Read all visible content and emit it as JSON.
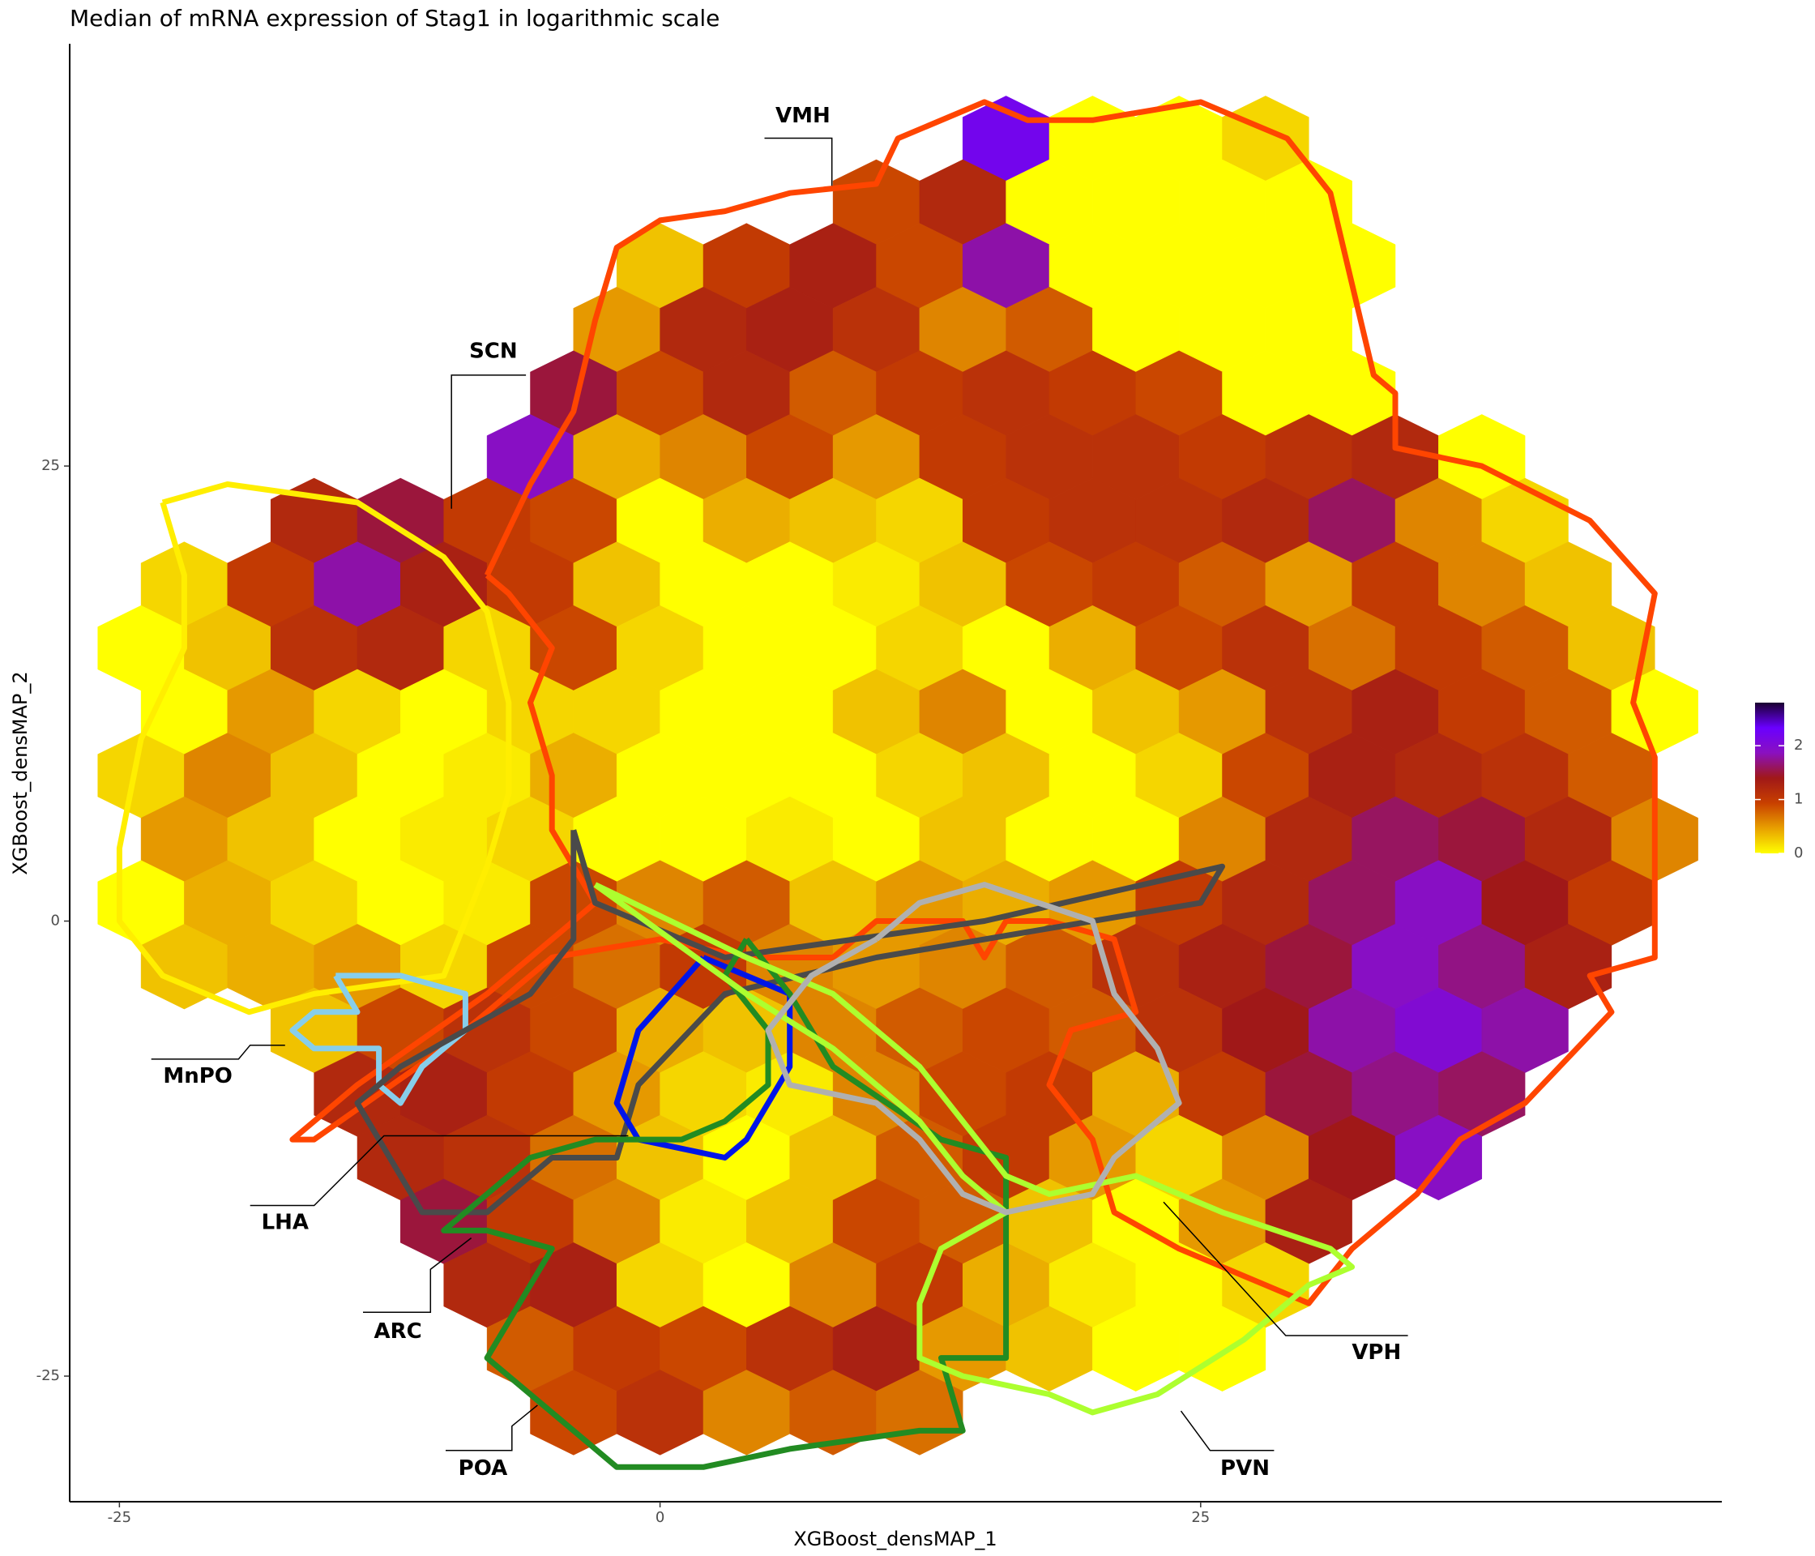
{
  "chart_data": {
    "type": "hexbin",
    "title": "Median of mRNA expression of Stag1 in logarithmic scale",
    "x_label": "XGBoost_densMAP_1",
    "y_label": "XGBoost_densMAP_2",
    "xlim": [
      -27.3,
      49.1
    ],
    "ylim": [
      -31.9,
      48.2
    ],
    "xticks": [
      -25,
      0,
      25
    ],
    "yticks": [
      -25,
      0,
      25
    ],
    "clim": [
      0,
      2.8
    ],
    "cticks": [
      0,
      1,
      2
    ],
    "colors": [
      "#ffff00",
      "#e8a000",
      "#c84000",
      "#a01818",
      "#8a10c0",
      "#6a00ff",
      "#1a0030"
    ],
    "rows": [
      {
        "y": 43,
        "x": [
          16,
          20,
          24,
          28
        ],
        "values": [
          2.2,
          0,
          0,
          0.2
        ]
      },
      {
        "y": 39.5,
        "x": [
          10,
          14,
          18,
          22,
          26,
          30
        ],
        "values": [
          0.9,
          1.2,
          0,
          0,
          0,
          0
        ]
      },
      {
        "y": 36,
        "x": [
          0,
          4,
          8,
          12,
          16,
          20,
          24,
          28,
          32
        ],
        "values": [
          0.3,
          1.0,
          1.3,
          0.9,
          1.8,
          0,
          0,
          0,
          0
        ]
      },
      {
        "y": 32.5,
        "x": [
          -2,
          2,
          6,
          10,
          14,
          18,
          22,
          26,
          30
        ],
        "values": [
          0.5,
          1.2,
          1.3,
          1.1,
          0.6,
          0.8,
          0,
          0,
          0
        ]
      },
      {
        "y": 29,
        "x": [
          -4,
          0,
          4,
          8,
          12,
          16,
          20,
          24,
          28,
          32
        ],
        "values": [
          1.5,
          0.9,
          1.2,
          0.8,
          1.0,
          1.1,
          1.0,
          0.9,
          0,
          0
        ]
      },
      {
        "y": 25.5,
        "x": [
          -6,
          -2,
          2,
          6,
          10,
          14,
          18,
          22,
          26,
          30,
          34,
          38
        ],
        "values": [
          1.9,
          0.4,
          0.6,
          0.9,
          0.5,
          1.0,
          1.1,
          1.1,
          1.0,
          1.1,
          1.2,
          0
        ]
      },
      {
        "y": 22,
        "x": [
          -16,
          -12,
          -8,
          -4,
          0,
          4,
          8,
          12,
          16,
          20,
          24,
          28,
          32,
          36,
          40
        ],
        "values": [
          1.2,
          1.5,
          1.0,
          0.9,
          0,
          0.4,
          0.3,
          0.2,
          1.0,
          1.1,
          1.1,
          1.2,
          1.6,
          0.6,
          0.2
        ]
      },
      {
        "y": 18.5,
        "x": [
          -22,
          -18,
          -14,
          -10,
          -6,
          -2,
          2,
          6,
          10,
          14,
          18,
          22,
          26,
          30,
          34,
          38,
          42
        ],
        "values": [
          0.2,
          1.0,
          1.8,
          1.3,
          1.0,
          0.3,
          0,
          0,
          0.1,
          0.3,
          0.9,
          1.0,
          0.8,
          0.5,
          1.0,
          0.6,
          0.3
        ]
      },
      {
        "y": 15,
        "x": [
          -24,
          -20,
          -16,
          -12,
          -8,
          -4,
          0,
          4,
          8,
          12,
          16,
          20,
          24,
          28,
          32,
          36,
          40,
          44
        ],
        "values": [
          0,
          0.3,
          1.1,
          1.2,
          0.2,
          0.9,
          0.2,
          0,
          0,
          0.2,
          0,
          0.4,
          0.9,
          1.1,
          0.7,
          1.0,
          0.8,
          0.3
        ]
      },
      {
        "y": 11.5,
        "x": [
          -22,
          -18,
          -14,
          -10,
          -6,
          -2,
          2,
          6,
          10,
          14,
          18,
          22,
          26,
          30,
          34,
          38,
          42,
          46
        ],
        "values": [
          0,
          0.5,
          0.2,
          0,
          0.2,
          0.2,
          0,
          0,
          0.3,
          0.6,
          0,
          0.3,
          0.5,
          1.1,
          1.3,
          1.0,
          0.8,
          0
        ]
      },
      {
        "y": 8,
        "x": [
          -24,
          -20,
          -16,
          -12,
          -8,
          -4,
          0,
          4,
          8,
          12,
          16,
          20,
          24,
          28,
          32,
          36,
          40,
          44
        ],
        "values": [
          0.2,
          0.6,
          0.3,
          0,
          0.1,
          0.4,
          0,
          0,
          0,
          0.2,
          0.3,
          0,
          0.2,
          0.9,
          1.3,
          1.2,
          1.1,
          0.8
        ]
      },
      {
        "y": 4.5,
        "x": [
          -22,
          -18,
          -14,
          -10,
          -6,
          -2,
          2,
          6,
          10,
          14,
          18,
          22,
          26,
          30,
          34,
          38,
          42,
          46
        ],
        "values": [
          0.5,
          0.3,
          0,
          0.1,
          0.2,
          0,
          0,
          0.1,
          0,
          0.3,
          0,
          0,
          0.6,
          1.2,
          1.6,
          1.5,
          1.2,
          0.6
        ]
      },
      {
        "y": 1,
        "x": [
          -24,
          -20,
          -16,
          -12,
          -8,
          -4,
          0,
          4,
          8,
          12,
          16,
          20,
          24,
          28,
          32,
          36,
          40,
          44
        ],
        "values": [
          0,
          0.4,
          0.2,
          0,
          0.1,
          0.9,
          0.6,
          0.8,
          0.3,
          0.5,
          0.4,
          0.5,
          1.0,
          1.2,
          1.6,
          1.9,
          1.4,
          1.0
        ]
      },
      {
        "y": -2.5,
        "x": [
          -22,
          -18,
          -14,
          -10,
          -6,
          -2,
          2,
          6,
          10,
          14,
          18,
          22,
          26,
          30,
          34,
          38,
          42
        ],
        "values": [
          0.3,
          0.4,
          0.5,
          0.2,
          0.9,
          0.7,
          1.0,
          0.6,
          0.5,
          0.6,
          0.8,
          1.1,
          1.3,
          1.5,
          1.9,
          1.7,
          1.3
        ]
      },
      {
        "y": -6,
        "x": [
          -16,
          -12,
          -8,
          -4,
          0,
          4,
          8,
          12,
          16,
          20,
          24,
          28,
          32,
          36,
          40
        ],
        "values": [
          0.3,
          0.9,
          1.1,
          0.9,
          0.4,
          0.3,
          0.6,
          0.8,
          0.9,
          0.8,
          1.1,
          1.4,
          1.8,
          2.0,
          1.8
        ]
      },
      {
        "y": -9.5,
        "x": [
          -14,
          -10,
          -6,
          -2,
          2,
          6,
          10,
          14,
          18,
          22,
          26,
          30,
          34,
          38
        ],
        "values": [
          1.2,
          1.3,
          1.0,
          0.5,
          0.2,
          0.1,
          0.6,
          0.9,
          1.0,
          0.4,
          1.0,
          1.5,
          1.7,
          1.6
        ]
      },
      {
        "y": -13,
        "x": [
          -12,
          -8,
          -4,
          0,
          4,
          8,
          12,
          16,
          20,
          24,
          28,
          32,
          36
        ],
        "values": [
          1.2,
          1.1,
          0.7,
          0.3,
          0,
          0.3,
          0.8,
          1.0,
          0.5,
          0.2,
          0.6,
          1.4,
          1.9
        ]
      },
      {
        "y": -16.5,
        "x": [
          -10,
          -6,
          -2,
          2,
          6,
          10,
          14,
          18,
          22,
          26,
          30
        ],
        "values": [
          1.5,
          1.0,
          0.6,
          0.1,
          0.3,
          0.9,
          0.8,
          0.3,
          0,
          0.5,
          1.3
        ]
      },
      {
        "y": -20,
        "x": [
          -8,
          -4,
          0,
          4,
          8,
          12,
          16,
          20,
          24,
          28
        ],
        "values": [
          1.2,
          1.3,
          0.2,
          0,
          0.6,
          1.0,
          0.4,
          0.1,
          0,
          0.2
        ]
      },
      {
        "y": -23.5,
        "x": [
          -6,
          -2,
          2,
          6,
          10,
          14,
          18,
          22,
          26
        ],
        "values": [
          0.8,
          1.0,
          0.9,
          1.1,
          1.3,
          0.5,
          0.3,
          0,
          0
        ]
      },
      {
        "y": -27,
        "x": [
          -4,
          0,
          4,
          8,
          12
        ],
        "values": [
          0.9,
          1.1,
          0.6,
          0.8,
          0.7
        ]
      }
    ],
    "regions": [
      {
        "name": "VMH",
        "color": "#ff4500",
        "x": [
          -8,
          -6,
          -4,
          -3,
          -2,
          0,
          3,
          6,
          10,
          11,
          15,
          17,
          20,
          25,
          29,
          31,
          32,
          33,
          34,
          34,
          38,
          43,
          46,
          45,
          46,
          46,
          46,
          43,
          44,
          40,
          37,
          35,
          32,
          30,
          28,
          24,
          21,
          20,
          18,
          19,
          22,
          21,
          18,
          16,
          15,
          14,
          10,
          8,
          4,
          0,
          -5,
          -10,
          -16,
          -17,
          -14,
          -8,
          -3,
          -5,
          -5,
          -6,
          -5,
          -7,
          -8
        ],
        "y": [
          19,
          24,
          28,
          33,
          37,
          38.5,
          39,
          40,
          40.5,
          43,
          45,
          44,
          44,
          45,
          43,
          40,
          35,
          30,
          29,
          26,
          25,
          22,
          18,
          12,
          9,
          3,
          -2,
          -3,
          -5,
          -10,
          -12,
          -15,
          -18,
          -21,
          -20,
          -18,
          -16,
          -12,
          -9,
          -6,
          -5,
          -1,
          0,
          0,
          -2,
          0,
          0,
          -2,
          -2,
          -1,
          -2,
          -7,
          -12,
          -12,
          -9,
          -4,
          1,
          5,
          8,
          12,
          15,
          18,
          19
        ]
      },
      {
        "name": "SCN",
        "color": "#ffee00",
        "x": [
          -23,
          -20,
          -14,
          -10,
          -8,
          -7,
          -7,
          -8,
          -10,
          -16,
          -19,
          -23,
          -25,
          -25,
          -24,
          -22,
          -22,
          -23
        ],
        "y": [
          23,
          24,
          23,
          20,
          17,
          12,
          7,
          3,
          -3,
          -4,
          -5,
          -3,
          0,
          4,
          10,
          15,
          19,
          23
        ]
      },
      {
        "name": "MnPO",
        "color": "#87ceeb",
        "x": [
          -15,
          -12,
          -9,
          -9,
          -11,
          -12,
          -13,
          -13,
          -16,
          -17,
          -16,
          -14,
          -15
        ],
        "y": [
          -3,
          -3,
          -4,
          -6,
          -8,
          -10,
          -9,
          -7,
          -7,
          -6,
          -5,
          -5,
          -3
        ]
      },
      {
        "name": "LHA",
        "color": "#4a4a4a",
        "x": [
          -4,
          -3,
          3,
          15,
          26,
          25,
          10,
          3,
          -1,
          -2,
          -5,
          -8,
          -11,
          -14,
          -12,
          -6,
          -4,
          -4
        ],
        "y": [
          5,
          1,
          -2,
          0,
          3,
          1,
          -2,
          -4,
          -9,
          -13,
          -13,
          -16,
          -16,
          -10,
          -8,
          -4,
          -1,
          5
        ]
      },
      {
        "name": "ARC",
        "color": "#0015e8",
        "x": [
          2,
          6,
          6,
          4,
          3,
          -1,
          -2,
          -1,
          2
        ],
        "y": [
          -2,
          -4,
          -8,
          -12,
          -13,
          -12,
          -10,
          -6,
          -2
        ]
      },
      {
        "name": "POA",
        "color": "#228b22",
        "x": [
          4,
          6,
          8,
          13,
          16,
          16,
          13,
          14,
          12,
          6,
          2,
          -2,
          -5,
          -8,
          -7,
          -5,
          -8,
          -10,
          -8,
          -6,
          -3,
          1,
          3,
          5,
          5,
          3,
          4
        ],
        "y": [
          -1,
          -4,
          -8,
          -12,
          -13,
          -24,
          -24,
          -28,
          -28,
          -29,
          -30,
          -30,
          -27,
          -24,
          -22,
          -18,
          -17,
          -17,
          -15,
          -13,
          -12,
          -12,
          -11,
          -9,
          -6,
          -3,
          -1
        ]
      },
      {
        "name": "PVN",
        "color": "#adff2f",
        "x": [
          -3,
          4,
          8,
          12,
          14,
          16,
          18,
          22,
          26,
          31,
          32,
          30,
          27,
          23,
          20,
          18,
          14,
          12,
          12,
          13,
          16,
          14,
          12,
          8,
          4,
          -3
        ],
        "y": [
          2,
          -2,
          -4,
          -8,
          -11,
          -14,
          -15,
          -14,
          -16,
          -18,
          -19,
          -20,
          -23,
          -26,
          -27,
          -26,
          -25,
          -24,
          -21,
          -18,
          -16,
          -14,
          -11,
          -7,
          -4,
          2
        ]
      },
      {
        "name": "VPH",
        "color": "#b0b0b0",
        "x": [
          10,
          12,
          15,
          20,
          21,
          23,
          24,
          21,
          20,
          16,
          14,
          12,
          10,
          6,
          5,
          7,
          10
        ],
        "y": [
          -1,
          1,
          2,
          0,
          -4,
          -7,
          -10,
          -13,
          -15,
          -16,
          -15,
          -12,
          -10,
          -9,
          -6,
          -3,
          -1
        ]
      }
    ]
  }
}
